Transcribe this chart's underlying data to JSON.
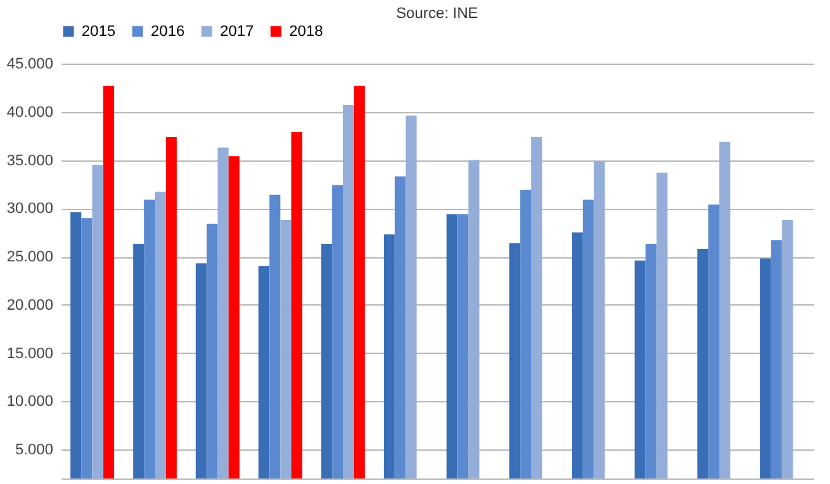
{
  "chart_data": {
    "type": "bar",
    "annotations": [
      "Source: INE"
    ],
    "categories": [
      null,
      null,
      null,
      null,
      null,
      null,
      null,
      null,
      null,
      null,
      null,
      null
    ],
    "series": [
      {
        "name": "2015",
        "color": "#3a6fb8",
        "values": [
          29600,
          26300,
          24300,
          24000,
          26300,
          27300,
          29400,
          26400,
          27500,
          24600,
          25800,
          24800
        ]
      },
      {
        "name": "2016",
        "color": "#5b8ad0",
        "values": [
          29000,
          30900,
          28400,
          31400,
          32400,
          33300,
          29400,
          31900,
          30900,
          26300,
          30400,
          26700
        ]
      },
      {
        "name": "2017",
        "color": "#95aed9",
        "values": [
          34500,
          31700,
          36300,
          28800,
          40700,
          39600,
          35000,
          37400,
          34900,
          33700,
          36900,
          28800
        ]
      },
      {
        "name": "2018",
        "color": "#ff0000",
        "values": [
          42700,
          37400,
          35400,
          37900,
          42700,
          null,
          null,
          null,
          null,
          null,
          null,
          null
        ]
      }
    ],
    "ylim": [
      2000,
      45000
    ],
    "yticks": [
      {
        "value": 5000,
        "label": "5.000"
      },
      {
        "value": 10000,
        "label": "10.000"
      },
      {
        "value": 15000,
        "label": "15.000"
      },
      {
        "value": 20000,
        "label": "20.000"
      },
      {
        "value": 25000,
        "label": "25.000"
      },
      {
        "value": 30000,
        "label": "30.000"
      },
      {
        "value": 35000,
        "label": "35.000"
      },
      {
        "value": 40000,
        "label": "40.000"
      },
      {
        "value": 45000,
        "label": "45.000"
      }
    ],
    "grid": "y",
    "legend": "top"
  }
}
